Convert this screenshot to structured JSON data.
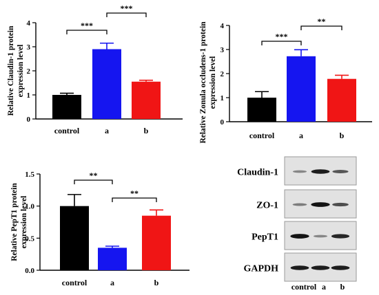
{
  "colors": {
    "control": "#000000",
    "a": "#1515f0",
    "b": "#f01515",
    "axis": "#000000"
  },
  "chart_data": [
    {
      "type": "bar",
      "ylabel": "Relative Claudin-1 protein expression  level",
      "categories": [
        "control",
        "a",
        "b"
      ],
      "values": [
        1.0,
        2.9,
        1.55
      ],
      "errors": [
        0.07,
        0.25,
        0.06
      ],
      "ylim": [
        0,
        4
      ],
      "yticks": [
        "0",
        "1",
        "2",
        "3",
        "4"
      ],
      "grid": false,
      "significance": [
        {
          "from": 0,
          "to": 1,
          "label": "***"
        },
        {
          "from": 1,
          "to": 2,
          "label": "***"
        }
      ]
    },
    {
      "type": "bar",
      "ylabel": "Relative Zonula occludens-1 protein expression  level",
      "categories": [
        "control",
        "a",
        "b"
      ],
      "values": [
        1.0,
        2.72,
        1.78
      ],
      "errors": [
        0.25,
        0.27,
        0.15
      ],
      "ylim": [
        0,
        4
      ],
      "yticks": [
        "0",
        "1",
        "2",
        "3",
        "4"
      ],
      "grid": false,
      "significance": [
        {
          "from": 0,
          "to": 1,
          "label": "***"
        },
        {
          "from": 1,
          "to": 2,
          "label": "**"
        }
      ]
    },
    {
      "type": "bar",
      "ylabel": "Relative PepT1 protein expression  level",
      "categories": [
        "control",
        "a",
        "b"
      ],
      "values": [
        1.0,
        0.35,
        0.85
      ],
      "errors": [
        0.18,
        0.025,
        0.09
      ],
      "ylim": [
        0,
        1.5
      ],
      "yticks": [
        "0.0",
        "0.5",
        "1.0",
        "1.5"
      ],
      "grid": false,
      "significance": [
        {
          "from": 0,
          "to": 1,
          "label": "**"
        },
        {
          "from": 1,
          "to": 2,
          "label": "**"
        }
      ]
    }
  ],
  "western_blot": {
    "rows": [
      {
        "label": "Claudin-1",
        "intensities": [
          0.35,
          0.9,
          0.6
        ]
      },
      {
        "label": "ZO-1",
        "intensities": [
          0.4,
          0.95,
          0.65
        ]
      },
      {
        "label": "PepT1",
        "intensities": [
          0.95,
          0.35,
          0.85
        ]
      },
      {
        "label": "GAPDH",
        "intensities": [
          0.9,
          0.9,
          0.9
        ]
      }
    ],
    "lanes": [
      "control",
      "a",
      "b"
    ]
  }
}
